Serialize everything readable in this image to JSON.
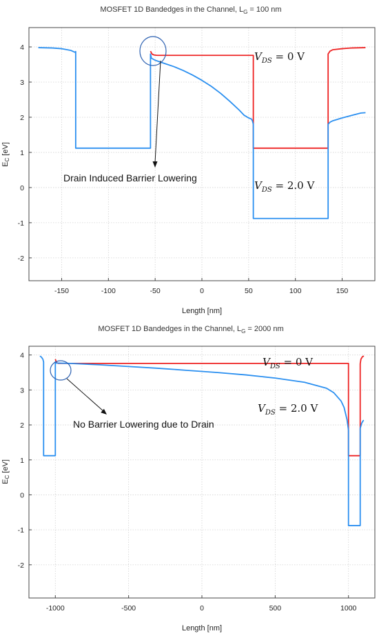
{
  "chart_data": [
    {
      "type": "line",
      "title": "MOSFET 1D Bandedges in the Channel, L",
      "title_sub": "G",
      "title_suffix": " = 100 nm",
      "xlabel": "Length   [nm]",
      "ylabel_main": "E",
      "ylabel_sub": "C",
      "ylabel_unit": " [eV]",
      "xlim": [
        -185,
        185
      ],
      "ylim": [
        -2.65,
        4.55
      ],
      "xticks": [
        -150,
        -100,
        -50,
        0,
        50,
        100,
        150
      ],
      "yticks": [
        -2,
        -1,
        0,
        1,
        2,
        3,
        4
      ],
      "grid": true,
      "series": [
        {
          "color": "#ee2222",
          "x": [
            -55,
            -54,
            -53,
            -51,
            -48,
            -45,
            54,
            55,
            55,
            134,
            135,
            135,
            137,
            140,
            150,
            160,
            175
          ],
          "y": [
            3.88,
            3.83,
            3.79,
            3.77,
            3.76,
            3.76,
            3.76,
            3.76,
            1.12,
            1.12,
            1.12,
            3.8,
            3.88,
            3.92,
            3.95,
            3.97,
            3.98
          ]
        },
        {
          "color": "#2a8ff0",
          "x": [
            -175,
            -160,
            -150,
            -140,
            -136,
            -135,
            -135,
            -55,
            -55,
            -54,
            -50,
            -40,
            -30,
            -20,
            -10,
            0,
            10,
            20,
            30,
            40,
            45,
            50,
            53,
            54,
            55,
            55,
            134,
            135,
            135,
            137,
            140,
            150,
            160,
            170,
            175
          ],
          "y": [
            3.98,
            3.97,
            3.95,
            3.9,
            3.85,
            3.87,
            1.12,
            1.12,
            3.8,
            3.68,
            3.62,
            3.53,
            3.44,
            3.33,
            3.2,
            3.05,
            2.88,
            2.68,
            2.45,
            2.2,
            2.06,
            1.98,
            1.95,
            1.9,
            1.8,
            -0.88,
            -0.88,
            -0.88,
            1.8,
            1.86,
            1.9,
            1.98,
            2.05,
            2.12,
            2.13
          ]
        }
      ],
      "annotations": {
        "vds0_main": "V",
        "vds0_sub": "DS",
        "vds0_value": " = 0 V",
        "vds2_main": "V",
        "vds2_sub": "DS",
        "vds2_value": " = 2.0 V",
        "text": "Drain Induced Barrier Lowering"
      }
    },
    {
      "type": "line",
      "title": "MOSFET 1D Bandedges in the Channel, L",
      "title_sub": "G",
      "title_suffix": " = 2000 nm",
      "xlabel": "Length   [nm]",
      "ylabel_main": "E",
      "ylabel_sub": "C",
      "ylabel_unit": " [eV]",
      "xlim": [
        -1180,
        1180
      ],
      "ylim": [
        -2.95,
        4.25
      ],
      "xticks": [
        -1000,
        -500,
        0,
        500,
        1000
      ],
      "yticks": [
        -2,
        -1,
        0,
        1,
        2,
        3,
        4
      ],
      "grid": true,
      "series": [
        {
          "color": "#ee2222",
          "x": [
            -1000,
            -995,
            -990,
            -980,
            0,
            995,
            998,
            1000,
            1000,
            1075,
            1080,
            1080,
            1085,
            1095,
            1105
          ],
          "y": [
            3.88,
            3.82,
            3.78,
            3.76,
            3.76,
            3.76,
            3.76,
            3.76,
            1.12,
            1.12,
            1.12,
            3.75,
            3.88,
            3.95,
            3.97
          ]
        },
        {
          "color": "#2a8ff0",
          "x": [
            -1105,
            -1095,
            -1085,
            -1080,
            -1080,
            -1000,
            -1000,
            -995,
            -900,
            -700,
            -500,
            -300,
            -100,
            0,
            100,
            300,
            500,
            700,
            850,
            900,
            950,
            970,
            990,
            995,
            1000,
            1000,
            1080,
            1080,
            1090,
            1100,
            1105
          ],
          "y": [
            3.97,
            3.94,
            3.88,
            3.8,
            1.12,
            1.12,
            3.8,
            3.77,
            3.76,
            3.72,
            3.67,
            3.62,
            3.56,
            3.53,
            3.5,
            3.43,
            3.34,
            3.22,
            3.05,
            2.92,
            2.68,
            2.5,
            2.15,
            2.0,
            1.85,
            -0.88,
            -0.88,
            1.9,
            2.05,
            2.12,
            2.13
          ]
        }
      ],
      "annotations": {
        "vds0_main": "V",
        "vds0_sub": "DS",
        "vds0_value": " = 0 V",
        "vds2_main": "V",
        "vds2_sub": "DS",
        "vds2_value": " = 2.0 V",
        "text": "No Barrier Lowering due to Drain"
      }
    }
  ]
}
